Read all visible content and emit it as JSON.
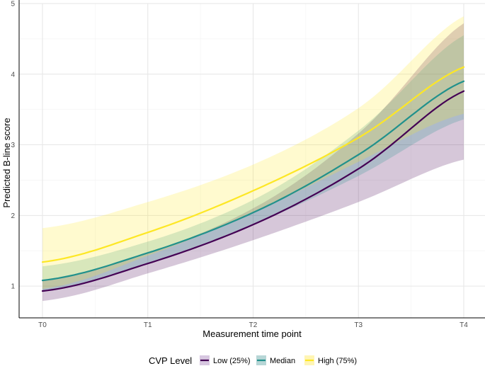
{
  "chart_data": {
    "type": "line",
    "title": "",
    "xlabel": "Measurement time point",
    "ylabel": "Predicted B-line score",
    "categories": [
      "T0",
      "T1",
      "T2",
      "T3",
      "T4"
    ],
    "ylim": [
      0.55,
      5
    ],
    "yticks": [
      1,
      2,
      3,
      4,
      5
    ],
    "grid": true,
    "legend": {
      "title": "CVP Level",
      "position": "bottom"
    },
    "series": [
      {
        "name": "Low (25%)",
        "color": "#440154",
        "fill": "#d7c7e0",
        "values": [
          0.93,
          1.32,
          1.87,
          2.66,
          3.76
        ],
        "lower": [
          0.79,
          1.18,
          1.65,
          2.19,
          2.79
        ],
        "upper": [
          1.09,
          1.47,
          2.1,
          3.16,
          4.72
        ]
      },
      {
        "name": "Median",
        "color": "#21918c",
        "fill": "#b7d6d6",
        "values": [
          1.08,
          1.47,
          2.04,
          2.86,
          3.9
        ],
        "lower": [
          0.93,
          1.33,
          1.87,
          2.56,
          3.36
        ],
        "upper": [
          1.28,
          1.63,
          2.22,
          3.2,
          4.55
        ]
      },
      {
        "name": "High (75%)",
        "color": "#fde725",
        "fill": "#fff5b5",
        "values": [
          1.34,
          1.76,
          2.35,
          3.1,
          4.1
        ],
        "lower": [
          0.96,
          1.43,
          2.04,
          2.76,
          3.44
        ],
        "upper": [
          1.82,
          2.19,
          2.72,
          3.52,
          4.82
        ]
      }
    ]
  }
}
